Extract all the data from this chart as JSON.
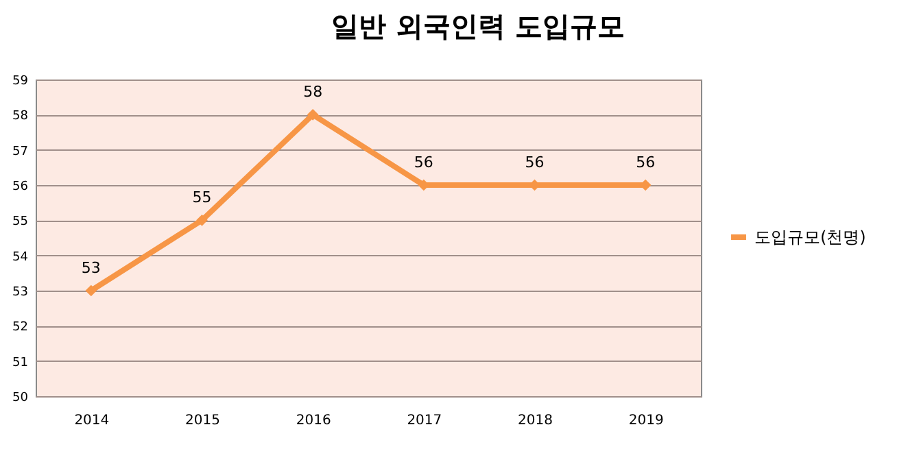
{
  "chart_data": {
    "type": "line",
    "title": "일반 외국인력 도입규모",
    "categories": [
      "2014",
      "2015",
      "2016",
      "2017",
      "2018",
      "2019"
    ],
    "series": [
      {
        "name": "도입규모(천명)",
        "color": "#f79646",
        "values": [
          53,
          55,
          58,
          56,
          56,
          56
        ]
      }
    ],
    "ylim": [
      50,
      59
    ],
    "yticks": [
      50,
      51,
      52,
      53,
      54,
      55,
      56,
      57,
      58,
      59
    ],
    "grid": "y",
    "legend": "right",
    "marker": "diamond",
    "data_labels": true
  }
}
